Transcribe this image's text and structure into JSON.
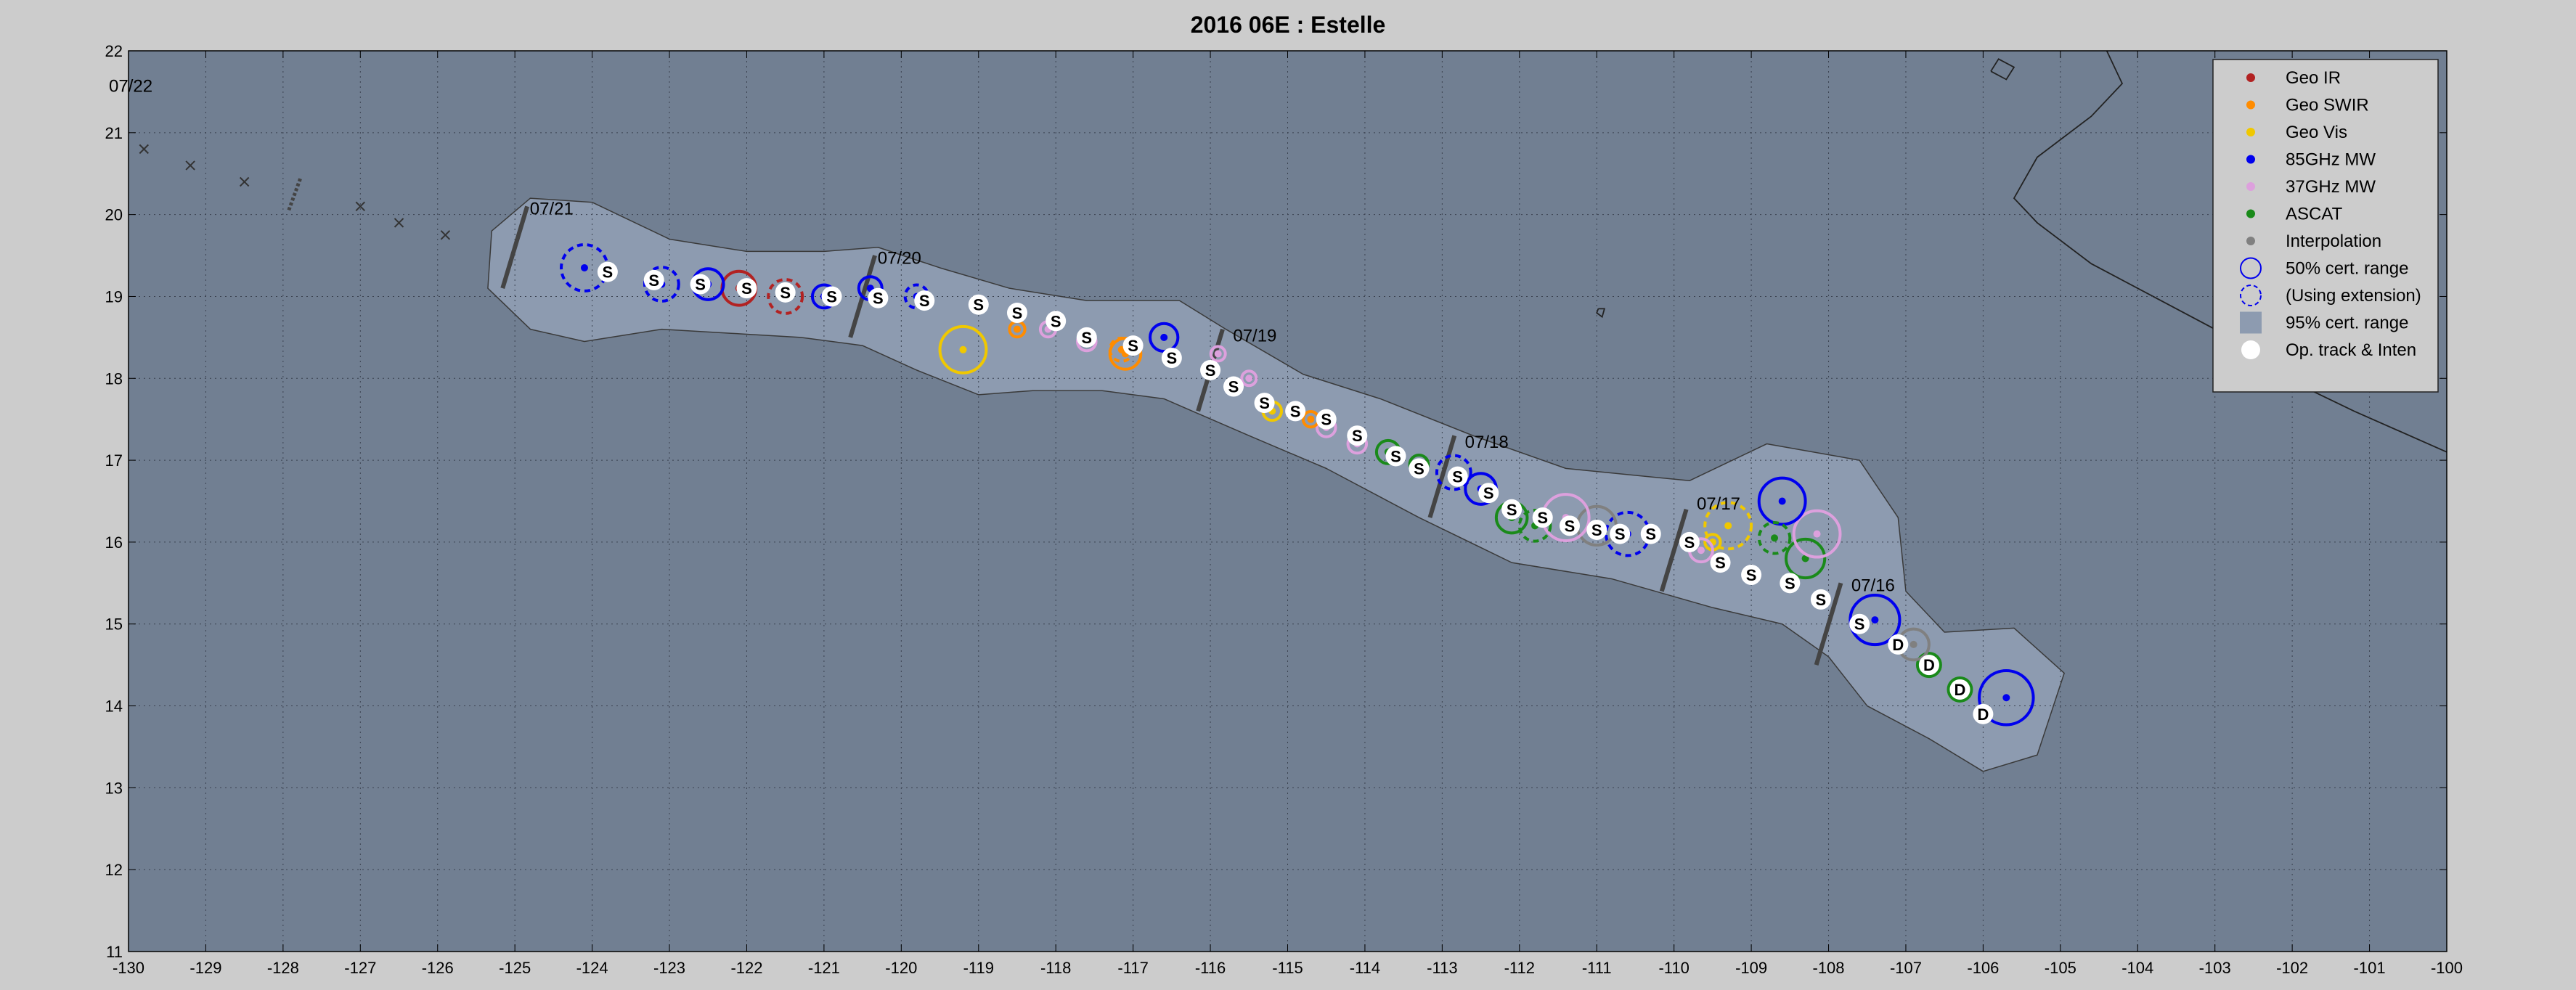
{
  "chart_data": {
    "type": "scatter",
    "title": "2016  06E :  Estelle",
    "xlabel": "",
    "ylabel": "",
    "xlim": [
      -130,
      -100
    ],
    "ylim": [
      11,
      22
    ],
    "grid": true,
    "legend_position": "top-right",
    "x_ticks": [
      -130,
      -129,
      -128,
      -127,
      -126,
      -125,
      -124,
      -123,
      -122,
      -121,
      -120,
      -119,
      -118,
      -117,
      -116,
      -115,
      -114,
      -113,
      -112,
      -111,
      -110,
      -109,
      -108,
      -107,
      -106,
      -105,
      -104,
      -103,
      -102,
      -101,
      -100
    ],
    "y_ticks": [
      11,
      12,
      13,
      14,
      15,
      16,
      17,
      18,
      19,
      20,
      21,
      22
    ],
    "colors": {
      "plot_bg": "#717f92",
      "cert95": "#8d9bb0",
      "geo_ir": "#b22222",
      "geo_swir": "#ff8c00",
      "geo_vis": "#f0c800",
      "mw85": "#0000ee",
      "mw37": "#dda0dd",
      "ascat": "#1a8a1a",
      "interp": "#808080"
    },
    "legend": [
      {
        "label": "Geo IR",
        "kind": "dot",
        "color": "#b22222"
      },
      {
        "label": "Geo SWIR",
        "kind": "dot",
        "color": "#ff8c00"
      },
      {
        "label": "Geo Vis",
        "kind": "dot",
        "color": "#f0c800"
      },
      {
        "label": "85GHz MW",
        "kind": "dot",
        "color": "#0000ee"
      },
      {
        "label": "37GHz MW",
        "kind": "dot",
        "color": "#dda0dd"
      },
      {
        "label": "ASCAT",
        "kind": "dot",
        "color": "#1a8a1a"
      },
      {
        "label": "Interpolation",
        "kind": "dot",
        "color": "#808080"
      },
      {
        "label": "50% cert. range",
        "kind": "circle",
        "color": "#0000ee"
      },
      {
        "label": "(Using extension)",
        "kind": "dashed",
        "color": "#0000ee"
      },
      {
        "label": "95% cert. range",
        "kind": "patch",
        "color": "#8d9bb0"
      },
      {
        "label": "Op. track & Inten",
        "kind": "white",
        "color": "#ffffff"
      }
    ],
    "date_labels": [
      {
        "text": "07/22",
        "x": -130.0,
        "y": 21.5
      },
      {
        "text": "07/21",
        "x": -124.9,
        "y": 20.0
      },
      {
        "text": "07/20",
        "x": -120.4,
        "y": 19.4
      },
      {
        "text": "07/19",
        "x": -115.8,
        "y": 18.45
      },
      {
        "text": "07/18",
        "x": -112.8,
        "y": 17.15
      },
      {
        "text": "07/17",
        "x": -109.8,
        "y": 16.4
      },
      {
        "text": "07/16",
        "x": -107.8,
        "y": 15.4
      }
    ],
    "date_bars": [
      {
        "x": -125.0,
        "y": 19.6
      },
      {
        "x": -120.5,
        "y": 19.0
      },
      {
        "x": -116.0,
        "y": 18.1
      },
      {
        "x": -113.0,
        "y": 16.8
      },
      {
        "x": -110.0,
        "y": 15.9
      },
      {
        "x": -108.0,
        "y": 15.0
      }
    ],
    "date_bar_len": 1.0,
    "op_track": [
      {
        "x": -106.0,
        "y": 13.9,
        "i": "D"
      },
      {
        "x": -106.3,
        "y": 14.2,
        "i": "D"
      },
      {
        "x": -106.7,
        "y": 14.5,
        "i": "D"
      },
      {
        "x": -107.1,
        "y": 14.75,
        "i": "D"
      },
      {
        "x": -107.6,
        "y": 15.0,
        "i": "S"
      },
      {
        "x": -108.1,
        "y": 15.3,
        "i": "S"
      },
      {
        "x": -108.5,
        "y": 15.5,
        "i": "S"
      },
      {
        "x": -109.0,
        "y": 15.6,
        "i": "S"
      },
      {
        "x": -109.4,
        "y": 15.75,
        "i": "S"
      },
      {
        "x": -109.8,
        "y": 16.0,
        "i": "S"
      },
      {
        "x": -110.3,
        "y": 16.1,
        "i": "S"
      },
      {
        "x": -110.7,
        "y": 16.1,
        "i": "S"
      },
      {
        "x": -111.0,
        "y": 16.15,
        "i": "S"
      },
      {
        "x": -111.35,
        "y": 16.2,
        "i": "S"
      },
      {
        "x": -111.7,
        "y": 16.3,
        "i": "S"
      },
      {
        "x": -112.1,
        "y": 16.4,
        "i": "S"
      },
      {
        "x": -112.4,
        "y": 16.6,
        "i": "S"
      },
      {
        "x": -112.8,
        "y": 16.8,
        "i": "S"
      },
      {
        "x": -113.3,
        "y": 16.9,
        "i": "S"
      },
      {
        "x": -113.6,
        "y": 17.05,
        "i": "S"
      },
      {
        "x": -114.1,
        "y": 17.3,
        "i": "S"
      },
      {
        "x": -114.5,
        "y": 17.5,
        "i": "S"
      },
      {
        "x": -114.9,
        "y": 17.6,
        "i": "S"
      },
      {
        "x": -115.3,
        "y": 17.7,
        "i": "S"
      },
      {
        "x": -115.7,
        "y": 17.9,
        "i": "S"
      },
      {
        "x": -116.0,
        "y": 18.1,
        "i": "S"
      },
      {
        "x": -116.5,
        "y": 18.25,
        "i": "S"
      },
      {
        "x": -117.0,
        "y": 18.4,
        "i": "S"
      },
      {
        "x": -117.6,
        "y": 18.5,
        "i": "S"
      },
      {
        "x": -118.0,
        "y": 18.7,
        "i": "S"
      },
      {
        "x": -118.5,
        "y": 18.8,
        "i": "S"
      },
      {
        "x": -119.0,
        "y": 18.9,
        "i": "S"
      },
      {
        "x": -119.7,
        "y": 18.95,
        "i": "S"
      },
      {
        "x": -120.3,
        "y": 18.98,
        "i": "S"
      },
      {
        "x": -120.9,
        "y": 19.0,
        "i": "S"
      },
      {
        "x": -121.5,
        "y": 19.05,
        "i": "S"
      },
      {
        "x": -122.0,
        "y": 19.1,
        "i": "S"
      },
      {
        "x": -122.6,
        "y": 19.15,
        "i": "S"
      },
      {
        "x": -123.2,
        "y": 19.2,
        "i": "S"
      },
      {
        "x": -123.8,
        "y": 19.3,
        "i": "S"
      }
    ],
    "fixes": [
      {
        "type": "mw85",
        "x": -105.7,
        "y": 14.1,
        "r": 0.35,
        "dashed": false
      },
      {
        "type": "ascat",
        "x": -106.3,
        "y": 14.2,
        "r": 0.15,
        "dashed": false
      },
      {
        "type": "ascat",
        "x": -106.7,
        "y": 14.5,
        "r": 0.15,
        "dashed": false
      },
      {
        "type": "interp",
        "x": -106.9,
        "y": 14.75,
        "r": 0.2,
        "dashed": false
      },
      {
        "type": "mw85",
        "x": -107.4,
        "y": 15.05,
        "r": 0.32,
        "dashed": false
      },
      {
        "type": "ascat",
        "x": -108.3,
        "y": 15.8,
        "r": 0.25,
        "dashed": false
      },
      {
        "type": "mw37",
        "x": -108.15,
        "y": 16.1,
        "r": 0.3,
        "dashed": false
      },
      {
        "type": "mw85",
        "x": -108.6,
        "y": 16.5,
        "r": 0.3,
        "dashed": false
      },
      {
        "type": "ascat",
        "x": -108.7,
        "y": 16.05,
        "r": 0.2,
        "dashed": true
      },
      {
        "type": "geo_vis",
        "x": -109.3,
        "y": 16.2,
        "r": 0.3,
        "dashed": true
      },
      {
        "type": "geo_vis",
        "x": -109.5,
        "y": 16.0,
        "r": 0.1,
        "dashed": false
      },
      {
        "type": "mw37",
        "x": -109.65,
        "y": 15.9,
        "r": 0.15,
        "dashed": false
      },
      {
        "type": "mw85",
        "x": -110.6,
        "y": 16.1,
        "r": 0.28,
        "dashed": true
      },
      {
        "type": "interp",
        "x": -111.0,
        "y": 16.2,
        "r": 0.25,
        "dashed": false
      },
      {
        "type": "mw37",
        "x": -111.4,
        "y": 16.3,
        "r": 0.3,
        "dashed": false
      },
      {
        "type": "ascat",
        "x": -111.8,
        "y": 16.2,
        "r": 0.2,
        "dashed": true
      },
      {
        "type": "ascat",
        "x": -112.1,
        "y": 16.3,
        "r": 0.2,
        "dashed": false
      },
      {
        "type": "mw85",
        "x": -112.5,
        "y": 16.65,
        "r": 0.2,
        "dashed": false
      },
      {
        "type": "mw85",
        "x": -112.85,
        "y": 16.85,
        "r": 0.22,
        "dashed": true
      },
      {
        "type": "ascat",
        "x": -113.3,
        "y": 16.95,
        "r": 0.12,
        "dashed": false
      },
      {
        "type": "ascat",
        "x": -113.7,
        "y": 17.1,
        "r": 0.15,
        "dashed": false
      },
      {
        "type": "mw37",
        "x": -114.1,
        "y": 17.2,
        "r": 0.12,
        "dashed": false
      },
      {
        "type": "mw37",
        "x": -114.5,
        "y": 17.4,
        "r": 0.12,
        "dashed": false
      },
      {
        "type": "geo_swir",
        "x": -114.7,
        "y": 17.5,
        "r": 0.1,
        "dashed": false
      },
      {
        "type": "geo_vis",
        "x": -115.2,
        "y": 17.6,
        "r": 0.12,
        "dashed": false
      },
      {
        "type": "mw37",
        "x": -115.5,
        "y": 18.0,
        "r": 0.08,
        "dashed": false
      },
      {
        "type": "mw37",
        "x": -115.9,
        "y": 18.3,
        "r": 0.08,
        "dashed": false
      },
      {
        "type": "mw85",
        "x": -116.6,
        "y": 18.5,
        "r": 0.18,
        "dashed": false
      },
      {
        "type": "geo_swir",
        "x": -117.1,
        "y": 18.3,
        "r": 0.2,
        "dashed": false
      },
      {
        "type": "geo_swir",
        "x": -117.15,
        "y": 18.35,
        "r": 0.15,
        "dashed": true
      },
      {
        "type": "mw37",
        "x": -117.6,
        "y": 18.45,
        "r": 0.12,
        "dashed": false
      },
      {
        "type": "mw37",
        "x": -118.1,
        "y": 18.6,
        "r": 0.1,
        "dashed": false
      },
      {
        "type": "geo_swir",
        "x": -118.5,
        "y": 18.6,
        "r": 0.1,
        "dashed": false
      },
      {
        "type": "geo_vis",
        "x": -119.2,
        "y": 18.35,
        "r": 0.3,
        "dashed": false
      },
      {
        "type": "mw85",
        "x": -119.8,
        "y": 19.0,
        "r": 0.15,
        "dashed": true
      },
      {
        "type": "mw85",
        "x": -120.4,
        "y": 19.1,
        "r": 0.15,
        "dashed": false
      },
      {
        "type": "mw85",
        "x": -121.0,
        "y": 19.0,
        "r": 0.15,
        "dashed": false
      },
      {
        "type": "geo_ir",
        "x": -121.5,
        "y": 19.0,
        "r": 0.22,
        "dashed": true
      },
      {
        "type": "geo_ir",
        "x": -122.1,
        "y": 19.1,
        "r": 0.22,
        "dashed": false
      },
      {
        "type": "mw85",
        "x": -122.5,
        "y": 19.15,
        "r": 0.2,
        "dashed": false
      },
      {
        "type": "mw85",
        "x": -123.1,
        "y": 19.15,
        "r": 0.22,
        "dashed": true
      },
      {
        "type": "mw85",
        "x": -124.1,
        "y": 19.35,
        "r": 0.3,
        "dashed": true
      }
    ],
    "cert95_envelope": [
      [
        -125.3,
        19.8
      ],
      [
        -124.8,
        20.2
      ],
      [
        -124.0,
        20.15
      ],
      [
        -123.0,
        19.7
      ],
      [
        -122.0,
        19.55
      ],
      [
        -121.0,
        19.55
      ],
      [
        -120.3,
        19.6
      ],
      [
        -119.5,
        19.35
      ],
      [
        -118.6,
        19.1
      ],
      [
        -117.6,
        18.95
      ],
      [
        -116.4,
        18.95
      ],
      [
        -115.8,
        18.6
      ],
      [
        -114.8,
        18.05
      ],
      [
        -113.8,
        17.75
      ],
      [
        -112.6,
        17.3
      ],
      [
        -111.4,
        16.9
      ],
      [
        -109.8,
        16.75
      ],
      [
        -108.8,
        17.2
      ],
      [
        -107.6,
        17.0
      ],
      [
        -107.1,
        16.3
      ],
      [
        -107.0,
        15.4
      ],
      [
        -106.5,
        14.9
      ],
      [
        -105.6,
        14.95
      ],
      [
        -104.95,
        14.4
      ],
      [
        -105.3,
        13.4
      ],
      [
        -106.0,
        13.2
      ],
      [
        -106.7,
        13.6
      ],
      [
        -107.5,
        14.0
      ],
      [
        -108.0,
        14.6
      ],
      [
        -108.6,
        15.0
      ],
      [
        -109.5,
        15.2
      ],
      [
        -110.8,
        15.55
      ],
      [
        -112.1,
        15.75
      ],
      [
        -113.3,
        16.3
      ],
      [
        -114.5,
        16.9
      ],
      [
        -115.5,
        17.3
      ],
      [
        -116.6,
        17.75
      ],
      [
        -117.4,
        17.85
      ],
      [
        -118.3,
        17.85
      ],
      [
        -119.0,
        17.8
      ],
      [
        -119.8,
        18.1
      ],
      [
        -120.5,
        18.4
      ],
      [
        -121.3,
        18.5
      ],
      [
        -122.2,
        18.55
      ],
      [
        -123.1,
        18.6
      ],
      [
        -124.1,
        18.45
      ],
      [
        -124.8,
        18.6
      ],
      [
        -125.35,
        19.1
      ]
    ],
    "extra_markers": [
      {
        "kind": "x",
        "x": -129.8,
        "y": 20.8
      },
      {
        "kind": "x",
        "x": -129.2,
        "y": 20.6
      },
      {
        "kind": "x",
        "x": -128.5,
        "y": 20.4
      },
      {
        "kind": "x",
        "x": -127.0,
        "y": 20.1
      },
      {
        "kind": "x",
        "x": -126.5,
        "y": 19.9
      },
      {
        "kind": "x",
        "x": -125.9,
        "y": 19.75
      }
    ],
    "extra_bar": {
      "x": -127.85,
      "y": 20.25
    },
    "land": [
      {
        "name": "baja-coast",
        "points": [
          [
            -104.4,
            22
          ],
          [
            -104.2,
            21.6
          ],
          [
            -104.6,
            21.2
          ],
          [
            -105.3,
            20.7
          ],
          [
            -105.6,
            20.2
          ],
          [
            -105.3,
            19.9
          ],
          [
            -104.6,
            19.4
          ],
          [
            -103.8,
            19.0
          ],
          [
            -103.0,
            18.6
          ],
          [
            -102.3,
            18.1
          ],
          [
            -101.2,
            17.6
          ],
          [
            -100,
            17.1
          ]
        ]
      },
      {
        "name": "island",
        "points": [
          [
            -105.9,
            21.75
          ],
          [
            -105.8,
            21.9
          ],
          [
            -105.6,
            21.8
          ],
          [
            -105.7,
            21.65
          ],
          [
            -105.9,
            21.75
          ]
        ]
      },
      {
        "name": "islet",
        "points": [
          [
            -110.98,
            18.85
          ],
          [
            -110.9,
            18.85
          ],
          [
            -110.93,
            18.75
          ],
          [
            -111.0,
            18.8
          ],
          [
            -110.98,
            18.85
          ]
        ]
      }
    ]
  }
}
